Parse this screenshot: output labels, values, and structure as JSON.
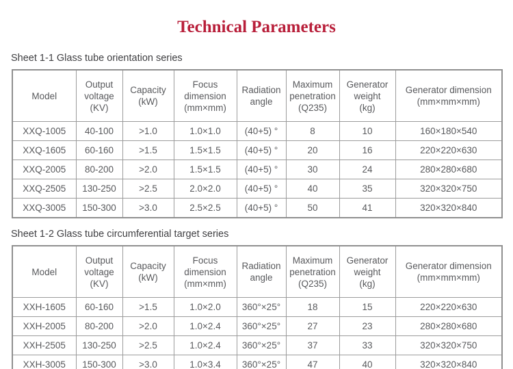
{
  "page": {
    "title": "Technical Parameters",
    "title_color": "#b81f3a",
    "text_color": "#58595c",
    "border_color": "#9b9b9b"
  },
  "tables": [
    {
      "caption": "Sheet 1-1 Glass tube orientation series",
      "headers": [
        "Model",
        "Output\nvoltage\n(KV)",
        "Capacity\n(kW)",
        "Focus\ndimension\n(mm×mm)",
        "Radiation\nangle",
        "Maximum\npenetration\n(Q235)",
        "Generator\nweight\n(kg)",
        "Generator dimension\n(mm×mm×mm)"
      ],
      "rows": [
        [
          "XXQ-1005",
          "40-100",
          ">1.0",
          "1.0×1.0",
          "(40+5) °",
          "8",
          "10",
          "160×180×540"
        ],
        [
          "XXQ-1605",
          "60-160",
          ">1.5",
          "1.5×1.5",
          "(40+5) °",
          "20",
          "16",
          "220×220×630"
        ],
        [
          "XXQ-2005",
          "80-200",
          ">2.0",
          "1.5×1.5",
          "(40+5) °",
          "30",
          "24",
          "280×280×680"
        ],
        [
          "XXQ-2505",
          "130-250",
          ">2.5",
          "2.0×2.0",
          "(40+5) °",
          "40",
          "35",
          "320×320×750"
        ],
        [
          "XXQ-3005",
          "150-300",
          ">3.0",
          "2.5×2.5",
          "(40+5) °",
          "50",
          "41",
          "320×320×840"
        ]
      ]
    },
    {
      "caption": "Sheet 1-2 Glass tube circumferential target series",
      "headers": [
        "Model",
        "Output\nvoltage\n(KV)",
        "Capacity\n(kW)",
        "Focus\ndimension\n(mm×mm)",
        "Radiation\nangle",
        "Maximum\npenetration\n(Q235)",
        "Generator\nweight\n(kg)",
        "Generator dimension\n(mm×mm×mm)"
      ],
      "rows": [
        [
          "XXH-1605",
          "60-160",
          ">1.5",
          "1.0×2.0",
          "360°×25°",
          "18",
          "15",
          "220×220×630"
        ],
        [
          "XXH-2005",
          "80-200",
          ">2.0",
          "1.0×2.4",
          "360°×25°",
          "27",
          "23",
          "280×280×680"
        ],
        [
          "XXH-2505",
          "130-250",
          ">2.5",
          "1.0×2.4",
          "360°×25°",
          "37",
          "33",
          "320×320×750"
        ],
        [
          "XXH-3005",
          "150-300",
          ">3.0",
          "1.0×3.4",
          "360°×25°",
          "47",
          "40",
          "320×320×840"
        ]
      ]
    }
  ]
}
